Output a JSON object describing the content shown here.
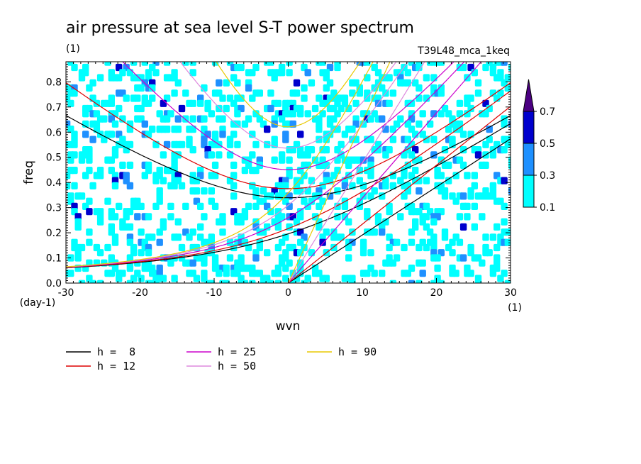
{
  "chart_data": {
    "type": "heatmap",
    "title": "air pressure at sea level S-T power spectrum",
    "subtitle_left": "(1)",
    "subtitle_right": "T39L48_mca_1keq",
    "xlabel": "wvn",
    "ylabel": "freq",
    "x_unit": "(1)",
    "y_unit": "(day-1)",
    "xlim": [
      -30,
      30
    ],
    "ylim": [
      0,
      0.88
    ],
    "x_ticks": [
      -30,
      -20,
      -10,
      0,
      10,
      20,
      30
    ],
    "x_tick_labels": [
      "-30",
      "-20",
      "-10",
      "0",
      "10",
      "20",
      "30"
    ],
    "y_ticks": [
      0,
      0.1,
      0.2,
      0.3,
      0.4,
      0.5,
      0.6,
      0.7,
      0.8
    ],
    "y_tick_labels": [
      "0.0",
      "0.1",
      "0.2",
      "0.3",
      "0.4",
      "0.5",
      "0.6",
      "0.7",
      "0.8"
    ],
    "colorbar": {
      "levels": [
        0.1,
        0.3,
        0.5,
        0.7
      ],
      "labels": [
        "0.1",
        "0.3",
        "0.5",
        "0.7"
      ],
      "colors": [
        "#00ffff",
        "#1e90ff",
        "#0000cd",
        "#4b0082"
      ],
      "extend": "max"
    },
    "dispersion_curves": [
      {
        "label": "h =  8",
        "h": 8,
        "color": "#000000"
      },
      {
        "label": "h = 12",
        "h": 12,
        "color": "#dd0000"
      },
      {
        "label": "h = 25",
        "h": 25,
        "color": "#cc00cc"
      },
      {
        "label": "h = 50",
        "h": 50,
        "color": "#dd88dd"
      },
      {
        "label": "h = 90",
        "h": 90,
        "color": "#e8c800"
      }
    ],
    "grid": false,
    "legend_position": "bottom-left"
  }
}
